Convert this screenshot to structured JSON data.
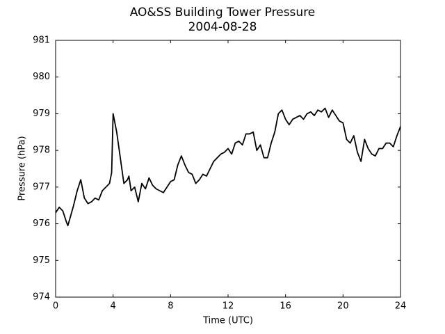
{
  "chart_data": {
    "type": "line",
    "title": "AO&SS Building Tower Pressure",
    "subtitle": "2004-08-28",
    "xlabel": "Time (UTC)",
    "ylabel": "Pressure (hPa)",
    "xlim": [
      0,
      24
    ],
    "xticks": [
      0,
      4,
      8,
      12,
      16,
      20,
      24
    ],
    "ylim": [
      974,
      981
    ],
    "yticks": [
      974,
      975,
      976,
      977,
      978,
      979,
      980,
      981
    ],
    "x": [
      0,
      0.25,
      0.5,
      0.75,
      0.85,
      1,
      1.25,
      1.5,
      1.75,
      2,
      2.25,
      2.5,
      2.75,
      3,
      3.25,
      3.5,
      3.75,
      3.9,
      4,
      4.1,
      4.25,
      4.5,
      4.75,
      5,
      5.1,
      5.25,
      5.5,
      5.75,
      6,
      6.25,
      6.5,
      6.75,
      7,
      7.25,
      7.5,
      7.75,
      8,
      8.25,
      8.5,
      8.75,
      9,
      9.25,
      9.5,
      9.75,
      10,
      10.25,
      10.5,
      10.75,
      11,
      11.25,
      11.5,
      11.75,
      12,
      12.25,
      12.5,
      12.75,
      13,
      13.25,
      13.5,
      13.75,
      14,
      14.25,
      14.5,
      14.75,
      15,
      15.25,
      15.5,
      15.75,
      16,
      16.25,
      16.5,
      16.75,
      17,
      17.25,
      17.5,
      17.75,
      18,
      18.25,
      18.5,
      18.75,
      19,
      19.25,
      19.5,
      19.75,
      20,
      20.25,
      20.5,
      20.75,
      21,
      21.25,
      21.5,
      21.75,
      22,
      22.25,
      22.5,
      22.75,
      23,
      23.25,
      23.5,
      23.75,
      24
    ],
    "series": [
      {
        "name": "Pressure",
        "color": "#000000",
        "values": [
          976.3,
          976.45,
          976.35,
          976.05,
          975.95,
          976.15,
          976.5,
          976.9,
          977.2,
          976.7,
          976.55,
          976.6,
          976.7,
          976.65,
          976.9,
          977.0,
          977.1,
          977.4,
          979.0,
          978.8,
          978.5,
          977.8,
          977.1,
          977.2,
          977.3,
          976.9,
          977.0,
          976.6,
          977.1,
          976.95,
          977.25,
          977.05,
          976.95,
          976.9,
          976.85,
          977.0,
          977.15,
          977.2,
          977.6,
          977.85,
          977.6,
          977.4,
          977.35,
          977.1,
          977.2,
          977.35,
          977.3,
          977.5,
          977.7,
          977.8,
          977.9,
          977.95,
          978.05,
          977.9,
          978.2,
          978.25,
          978.15,
          978.45,
          978.45,
          978.5,
          978.0,
          978.15,
          977.8,
          977.8,
          978.2,
          978.5,
          979.0,
          979.1,
          978.85,
          978.7,
          978.85,
          978.9,
          978.95,
          978.85,
          979.0,
          979.05,
          978.95,
          979.1,
          979.05,
          979.15,
          978.9,
          979.1,
          978.95,
          978.8,
          978.75,
          978.3,
          978.2,
          978.4,
          977.95,
          977.7,
          978.3,
          978.05,
          977.9,
          977.85,
          978.05,
          978.05,
          978.2,
          978.2,
          978.1,
          978.4,
          978.65
        ]
      }
    ]
  }
}
